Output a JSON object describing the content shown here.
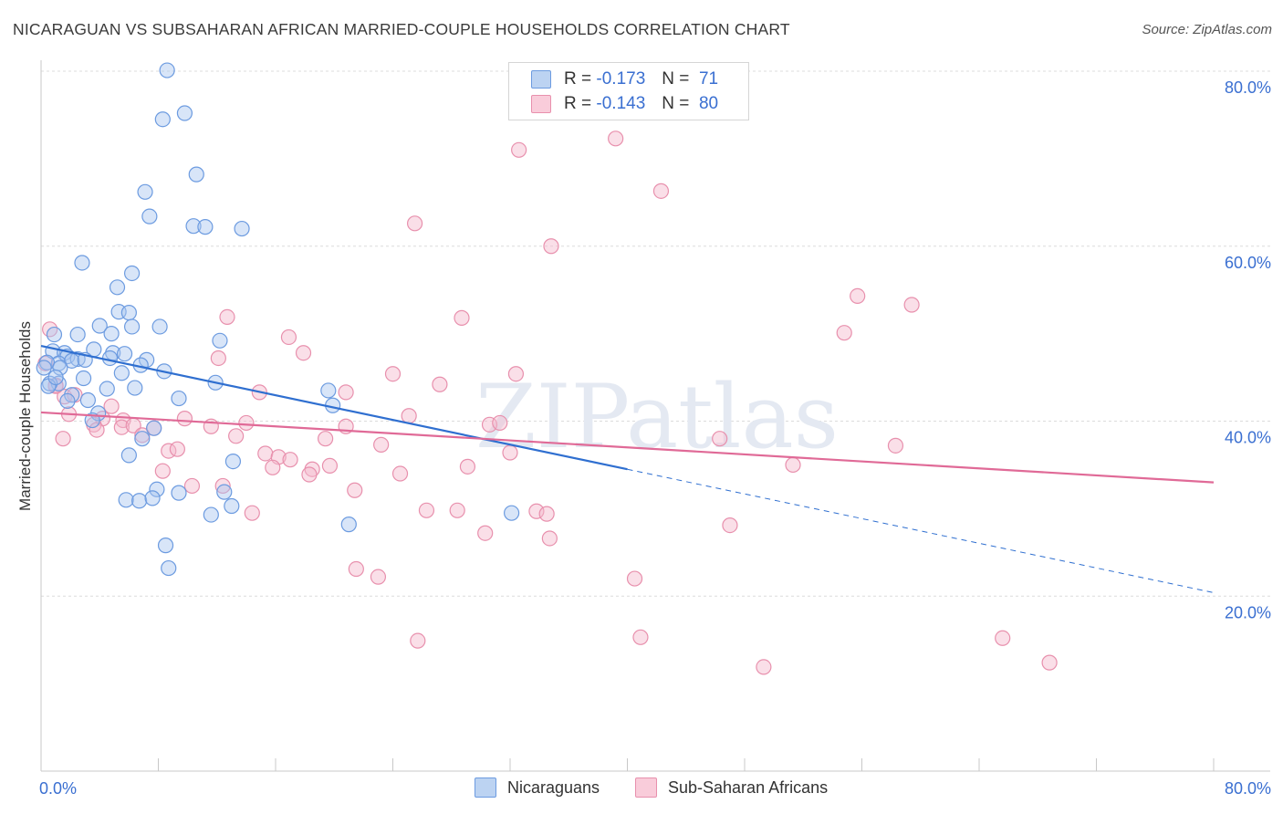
{
  "header": {
    "title": "NICARAGUAN VS SUBSAHARAN AFRICAN MARRIED-COUPLE HOUSEHOLDS CORRELATION CHART",
    "source": "Source: ZipAtlas.com"
  },
  "watermark": "ZIPatlas",
  "colors": {
    "blue_fill": "#a9c6ef",
    "blue_stroke": "#6c9be0",
    "blue_line": "#2f6fd0",
    "pink_fill": "#f5b9cc",
    "pink_stroke": "#e890ad",
    "pink_line": "#e06a97",
    "axis_text": "#3a6fd1"
  },
  "legend": {
    "rows": [
      {
        "r_label": "R =",
        "r_value": "-0.173",
        "n_label": "N =",
        "n_value": "71"
      },
      {
        "r_label": "R =",
        "r_value": "-0.143",
        "n_label": "N =",
        "n_value": "80"
      }
    ]
  },
  "bottom_legend": {
    "series1": "Nicaraguans",
    "series2": "Sub-Saharan Africans"
  },
  "chart_data": {
    "type": "scatter",
    "xlabel": "",
    "ylabel": "Married-couple Households",
    "xlim": [
      0,
      80
    ],
    "ylim": [
      0,
      80
    ],
    "x_tick_labels": [
      "0.0%",
      "80.0%"
    ],
    "y_tick_labels": [
      "20.0%",
      "40.0%",
      "60.0%",
      "80.0%"
    ],
    "y_ticks": [
      20,
      40,
      60,
      80
    ],
    "grid": true,
    "legend_position": "top-center",
    "series": [
      {
        "name": "Nicaraguans",
        "r": -0.173,
        "n": 71,
        "trend": {
          "x_start": 0,
          "y_start": 48.6,
          "x_end": 40,
          "y_end": 34.5,
          "dashed_to_x": 80,
          "dashed_to_y": 20.4
        },
        "points": [
          [
            8.6,
            80.1
          ],
          [
            9.8,
            75.2
          ],
          [
            8.3,
            74.5
          ],
          [
            10.6,
            68.2
          ],
          [
            7.1,
            66.2
          ],
          [
            7.4,
            63.4
          ],
          [
            10.4,
            62.3
          ],
          [
            11.2,
            62.2
          ],
          [
            13.7,
            62.0
          ],
          [
            2.8,
            58.1
          ],
          [
            6.2,
            56.9
          ],
          [
            5.2,
            55.3
          ],
          [
            5.3,
            52.5
          ],
          [
            6.0,
            52.4
          ],
          [
            4.0,
            50.9
          ],
          [
            6.2,
            50.8
          ],
          [
            8.1,
            50.8
          ],
          [
            0.9,
            49.9
          ],
          [
            2.5,
            49.9
          ],
          [
            4.8,
            50.0
          ],
          [
            12.2,
            49.2
          ],
          [
            0.8,
            48.0
          ],
          [
            1.6,
            47.8
          ],
          [
            3.6,
            48.2
          ],
          [
            4.9,
            47.8
          ],
          [
            5.7,
            47.7
          ],
          [
            1.8,
            47.4
          ],
          [
            2.5,
            47.1
          ],
          [
            4.7,
            47.2
          ],
          [
            7.2,
            47.0
          ],
          [
            1.2,
            46.6
          ],
          [
            2.1,
            46.9
          ],
          [
            0.4,
            46.7
          ],
          [
            1.3,
            46.1
          ],
          [
            0.2,
            46.1
          ],
          [
            6.8,
            46.4
          ],
          [
            8.4,
            45.7
          ],
          [
            2.9,
            44.9
          ],
          [
            1.2,
            44.3
          ],
          [
            0.6,
            44.3
          ],
          [
            11.9,
            44.4
          ],
          [
            4.5,
            43.7
          ],
          [
            6.4,
            43.8
          ],
          [
            19.6,
            43.5
          ],
          [
            2.1,
            43.0
          ],
          [
            9.4,
            42.6
          ],
          [
            3.2,
            42.4
          ],
          [
            1.8,
            42.3
          ],
          [
            19.9,
            41.8
          ],
          [
            3.9,
            40.9
          ],
          [
            3.5,
            40.1
          ],
          [
            7.7,
            39.2
          ],
          [
            6.9,
            38.0
          ],
          [
            6.0,
            36.1
          ],
          [
            13.1,
            35.4
          ],
          [
            7.9,
            32.2
          ],
          [
            9.4,
            31.8
          ],
          [
            12.5,
            31.9
          ],
          [
            5.8,
            31.0
          ],
          [
            6.7,
            30.9
          ],
          [
            7.6,
            31.2
          ],
          [
            13.0,
            30.3
          ],
          [
            11.6,
            29.3
          ],
          [
            32.1,
            29.5
          ],
          [
            21.0,
            28.2
          ],
          [
            8.5,
            25.8
          ],
          [
            8.7,
            23.2
          ],
          [
            0.5,
            44.0
          ],
          [
            1.0,
            45.0
          ],
          [
            3.0,
            47.0
          ],
          [
            5.5,
            45.5
          ]
        ]
      },
      {
        "name": "Sub-Saharan Africans",
        "r": -0.143,
        "n": 80,
        "trend": {
          "x_start": 0,
          "y_start": 41.0,
          "x_end": 80,
          "y_end": 33.0
        },
        "points": [
          [
            39.2,
            72.3
          ],
          [
            32.6,
            71.0
          ],
          [
            42.3,
            66.3
          ],
          [
            25.5,
            62.6
          ],
          [
            34.8,
            60.0
          ],
          [
            55.7,
            54.3
          ],
          [
            59.4,
            53.3
          ],
          [
            12.7,
            51.9
          ],
          [
            28.7,
            51.8
          ],
          [
            54.8,
            50.1
          ],
          [
            16.9,
            49.6
          ],
          [
            0.6,
            50.5
          ],
          [
            17.9,
            47.8
          ],
          [
            12.1,
            47.2
          ],
          [
            0.3,
            46.6
          ],
          [
            24.0,
            45.4
          ],
          [
            32.4,
            45.4
          ],
          [
            1.0,
            44.1
          ],
          [
            27.2,
            44.2
          ],
          [
            14.9,
            43.3
          ],
          [
            20.8,
            43.3
          ],
          [
            1.6,
            42.8
          ],
          [
            2.3,
            43.0
          ],
          [
            4.8,
            41.7
          ],
          [
            25.1,
            40.6
          ],
          [
            1.9,
            40.8
          ],
          [
            9.8,
            40.3
          ],
          [
            5.6,
            40.1
          ],
          [
            4.2,
            40.3
          ],
          [
            14.0,
            39.8
          ],
          [
            3.6,
            39.6
          ],
          [
            5.5,
            39.3
          ],
          [
            6.3,
            39.5
          ],
          [
            11.6,
            39.4
          ],
          [
            7.7,
            39.2
          ],
          [
            20.8,
            39.4
          ],
          [
            30.6,
            39.6
          ],
          [
            31.3,
            39.8
          ],
          [
            3.8,
            39.0
          ],
          [
            1.5,
            38.0
          ],
          [
            6.9,
            38.4
          ],
          [
            13.3,
            38.3
          ],
          [
            19.4,
            38.0
          ],
          [
            46.3,
            38.0
          ],
          [
            58.3,
            37.2
          ],
          [
            23.2,
            37.3
          ],
          [
            8.7,
            36.6
          ],
          [
            9.3,
            36.8
          ],
          [
            15.3,
            36.3
          ],
          [
            16.2,
            35.9
          ],
          [
            17.0,
            35.6
          ],
          [
            32.0,
            36.4
          ],
          [
            51.3,
            35.0
          ],
          [
            29.1,
            34.8
          ],
          [
            18.5,
            34.5
          ],
          [
            15.8,
            34.7
          ],
          [
            8.3,
            34.3
          ],
          [
            19.7,
            34.9
          ],
          [
            18.3,
            33.9
          ],
          [
            24.5,
            34.0
          ],
          [
            10.3,
            32.6
          ],
          [
            12.4,
            32.6
          ],
          [
            21.4,
            32.1
          ],
          [
            26.3,
            29.8
          ],
          [
            28.4,
            29.8
          ],
          [
            14.4,
            29.5
          ],
          [
            33.8,
            29.7
          ],
          [
            34.5,
            29.4
          ],
          [
            47.0,
            28.1
          ],
          [
            30.3,
            27.2
          ],
          [
            34.7,
            26.6
          ],
          [
            21.5,
            23.1
          ],
          [
            23.0,
            22.2
          ],
          [
            40.5,
            22.0
          ],
          [
            40.9,
            15.3
          ],
          [
            25.7,
            14.9
          ],
          [
            65.6,
            15.2
          ],
          [
            68.8,
            12.4
          ],
          [
            49.3,
            11.9
          ],
          [
            1.0,
            44.0
          ]
        ]
      }
    ]
  }
}
